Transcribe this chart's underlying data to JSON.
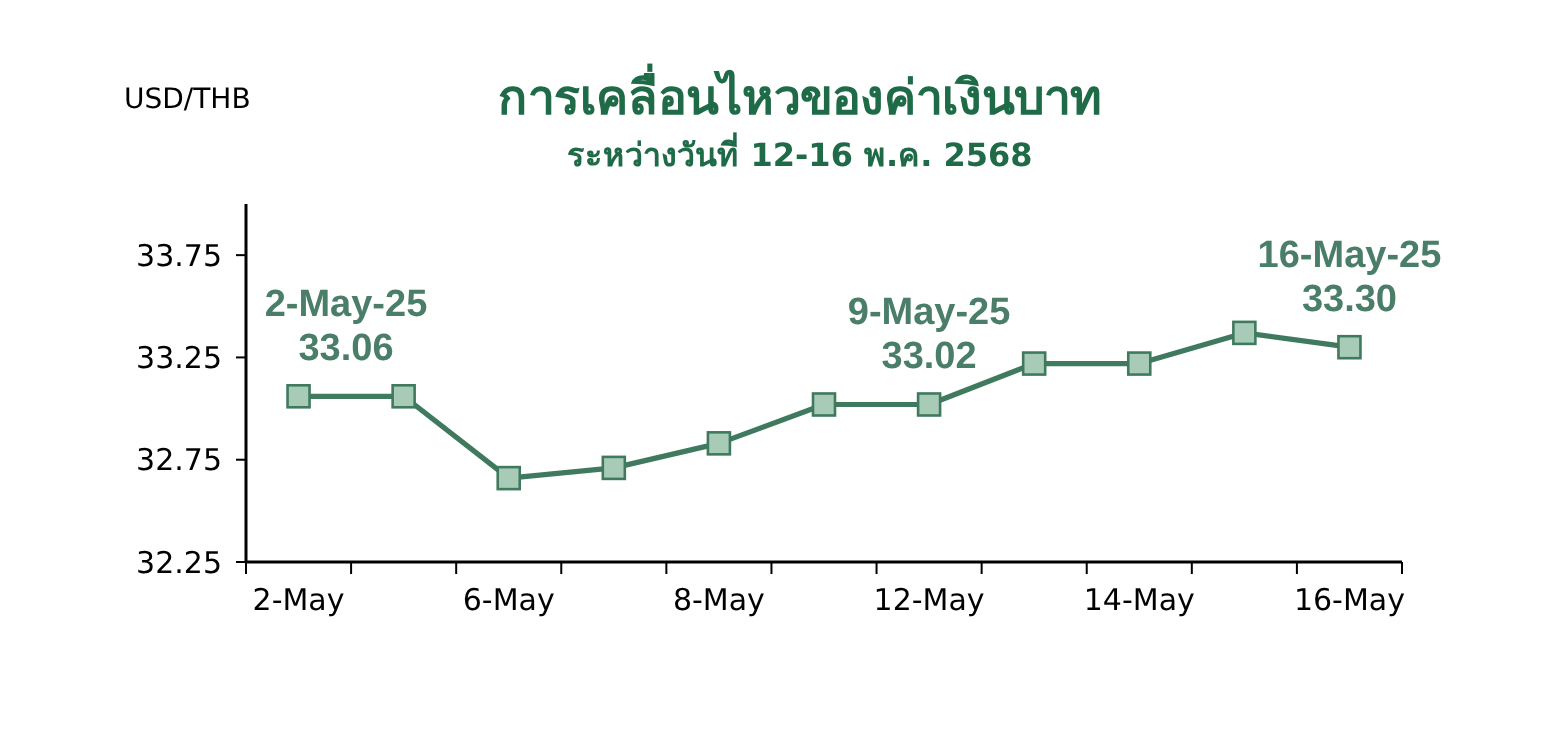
{
  "chart_data": {
    "type": "line",
    "title": "การเคลื่อนไหวของค่าเงินบาท",
    "subtitle": "ระหว่างวันที่ 12-16 พ.ค. 2568",
    "ylabel": "USD/THB",
    "categories": [
      "2-May",
      null,
      "6-May",
      null,
      "8-May",
      null,
      "12-May",
      null,
      "14-May",
      null,
      "16-May"
    ],
    "series": [
      {
        "color": "#3f7a5f",
        "values": [
          33.06,
          33.06,
          32.66,
          32.71,
          32.83,
          33.02,
          33.02,
          33.22,
          33.22,
          33.37,
          33.3
        ]
      }
    ],
    "ylim": [
      32.25,
      34
    ],
    "yticks": [
      32.25,
      32.75,
      33.25,
      33.75
    ],
    "grid": false,
    "marker": "square",
    "line_style": "solid",
    "annotations": [
      {
        "text": "2-May-25\n33.06",
        "x": "2-May",
        "y": 33.06
      },
      {
        "text": "9-May-25\n33.02",
        "y": 33.02
      },
      {
        "text": "16-May-25\n33.30",
        "x": "16-May",
        "y": 33.3
      }
    ]
  }
}
